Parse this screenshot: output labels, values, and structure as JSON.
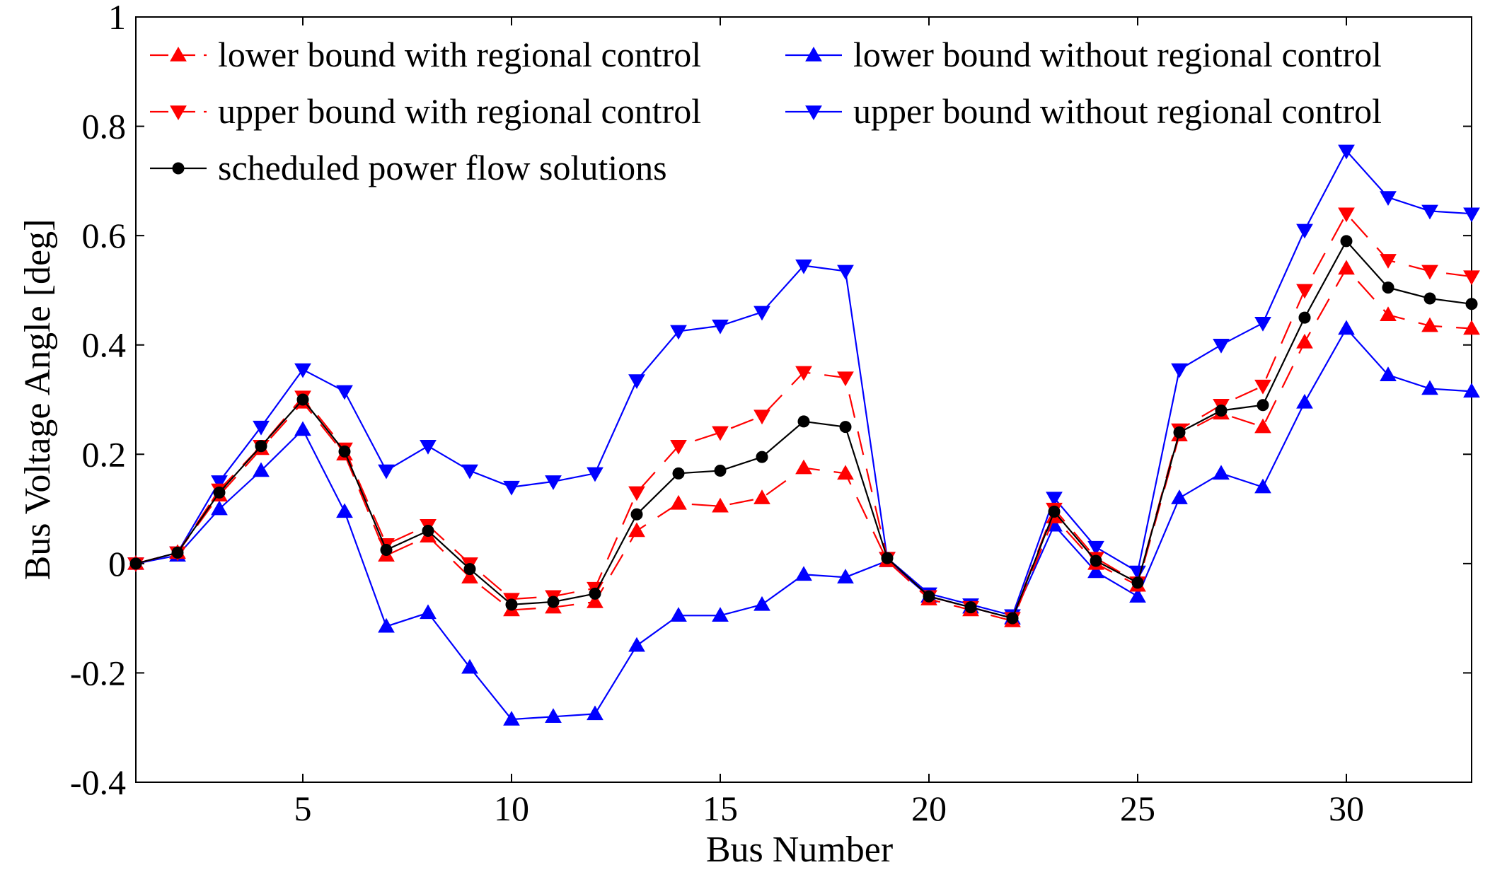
{
  "chart_data": {
    "type": "line",
    "xlabel": "Bus Number",
    "ylabel": "Bus Voltage Angle [deg]",
    "xlim": [
      1,
      33
    ],
    "ylim": [
      -0.4,
      1
    ],
    "xticks": [
      5,
      10,
      15,
      20,
      25,
      30
    ],
    "xtick_labels": [
      "5",
      "10",
      "15",
      "20",
      "25",
      "30"
    ],
    "yticks": [
      -0.4,
      -0.2,
      0,
      0.2,
      0.4,
      0.6,
      0.8,
      1
    ],
    "ytick_labels": [
      "-0.4",
      "-0.2",
      "0",
      "0.2",
      "0.4",
      "0.6",
      "0.8",
      "1"
    ],
    "grid": false,
    "legend_position": "top-left",
    "x": [
      1,
      2,
      3,
      4,
      5,
      6,
      7,
      8,
      9,
      10,
      11,
      12,
      13,
      14,
      15,
      16,
      17,
      18,
      19,
      20,
      21,
      22,
      23,
      24,
      25,
      26,
      27,
      28,
      29,
      30,
      31,
      32,
      33
    ],
    "series": [
      {
        "name": "lower bound with regional control",
        "color": "#ff0000",
        "marker": "triangle-up",
        "dash": "dashed",
        "values": [
          0,
          0.02,
          0.125,
          0.21,
          0.295,
          0.2,
          0.015,
          0.05,
          -0.025,
          -0.085,
          -0.08,
          -0.07,
          0.06,
          0.11,
          0.105,
          0.12,
          0.175,
          0.165,
          0.005,
          -0.065,
          -0.085,
          -0.105,
          0.085,
          0.0,
          -0.04,
          0.235,
          0.275,
          0.25,
          0.405,
          0.54,
          0.455,
          0.435,
          0.43
        ]
      },
      {
        "name": "lower bound without regional control",
        "color": "#0000ff",
        "marker": "triangle-up",
        "dash": "solid",
        "values": [
          0,
          0.015,
          0.1,
          0.17,
          0.245,
          0.095,
          -0.115,
          -0.09,
          -0.19,
          -0.285,
          -0.28,
          -0.275,
          -0.15,
          -0.095,
          -0.095,
          -0.075,
          -0.02,
          -0.025,
          0.005,
          -0.06,
          -0.08,
          -0.1,
          0.07,
          -0.015,
          -0.06,
          0.12,
          0.165,
          0.14,
          0.295,
          0.43,
          0.345,
          0.32,
          0.315
        ]
      },
      {
        "name": "upper bound with regional control",
        "color": "#ff0000",
        "marker": "triangle-down",
        "dash": "dashed",
        "values": [
          0,
          0.02,
          0.135,
          0.215,
          0.305,
          0.21,
          0.035,
          0.07,
          0.0,
          -0.065,
          -0.06,
          -0.045,
          0.13,
          0.215,
          0.24,
          0.27,
          0.35,
          0.34,
          0.01,
          -0.06,
          -0.08,
          -0.1,
          0.1,
          0.01,
          -0.035,
          0.245,
          0.29,
          0.325,
          0.5,
          0.64,
          0.555,
          0.535,
          0.525
        ]
      },
      {
        "name": "upper bound without regional control",
        "color": "#0000ff",
        "marker": "triangle-down",
        "dash": "solid",
        "values": [
          0,
          0.02,
          0.15,
          0.25,
          0.355,
          0.315,
          0.17,
          0.215,
          0.17,
          0.14,
          0.15,
          0.165,
          0.335,
          0.425,
          0.435,
          0.46,
          0.545,
          0.535,
          0.01,
          -0.055,
          -0.075,
          -0.095,
          0.12,
          0.03,
          -0.015,
          0.355,
          0.4,
          0.44,
          0.61,
          0.755,
          0.67,
          0.645,
          0.64
        ]
      },
      {
        "name": "scheduled power flow solutions",
        "color": "#000000",
        "marker": "circle",
        "dash": "solid",
        "values": [
          0,
          0.02,
          0.13,
          0.215,
          0.3,
          0.205,
          0.025,
          0.06,
          -0.01,
          -0.075,
          -0.07,
          -0.055,
          0.09,
          0.165,
          0.17,
          0.195,
          0.26,
          0.25,
          0.01,
          -0.06,
          -0.08,
          -0.1,
          0.095,
          0.005,
          -0.035,
          0.24,
          0.28,
          0.29,
          0.45,
          0.59,
          0.505,
          0.485,
          0.475
        ]
      }
    ]
  }
}
